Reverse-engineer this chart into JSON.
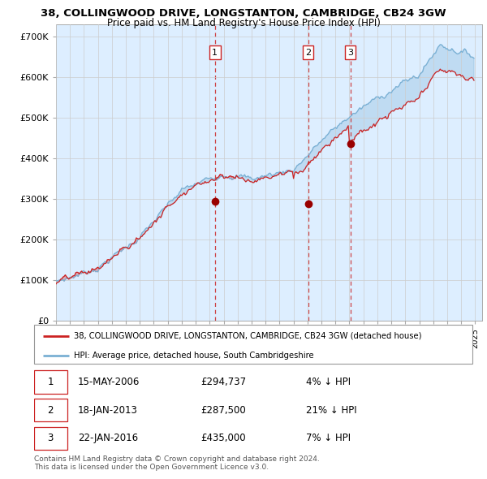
{
  "title": "38, COLLINGWOOD DRIVE, LONGSTANTON, CAMBRIDGE, CB24 3GW",
  "subtitle": "Price paid vs. HM Land Registry's House Price Index (HPI)",
  "ylim": [
    0,
    730000
  ],
  "yticks": [
    0,
    100000,
    200000,
    300000,
    400000,
    500000,
    600000,
    700000
  ],
  "ytick_labels": [
    "£0",
    "£100K",
    "£200K",
    "£300K",
    "£400K",
    "£500K",
    "£600K",
    "£700K"
  ],
  "xlim_start": 1995,
  "xlim_end": 2025.5,
  "hpi_color": "#7ab0d4",
  "price_color": "#cc2222",
  "chart_bg": "#ddeeff",
  "transaction_dates": [
    2006.37,
    2013.04,
    2016.06
  ],
  "transaction_prices": [
    294737,
    287500,
    435000
  ],
  "transaction_labels": [
    "1",
    "2",
    "3"
  ],
  "legend_price_label": "38, COLLINGWOOD DRIVE, LONGSTANTON, CAMBRIDGE, CB24 3GW (detached house)",
  "legend_hpi_label": "HPI: Average price, detached house, South Cambridgeshire",
  "table_rows": [
    [
      "1",
      "15-MAY-2006",
      "£294,737",
      "4% ↓ HPI"
    ],
    [
      "2",
      "18-JAN-2013",
      "£287,500",
      "21% ↓ HPI"
    ],
    [
      "3",
      "22-JAN-2016",
      "£435,000",
      "7% ↓ HPI"
    ]
  ],
  "footnote_line1": "Contains HM Land Registry data © Crown copyright and database right 2024.",
  "footnote_line2": "This data is licensed under the Open Government Licence v3.0."
}
